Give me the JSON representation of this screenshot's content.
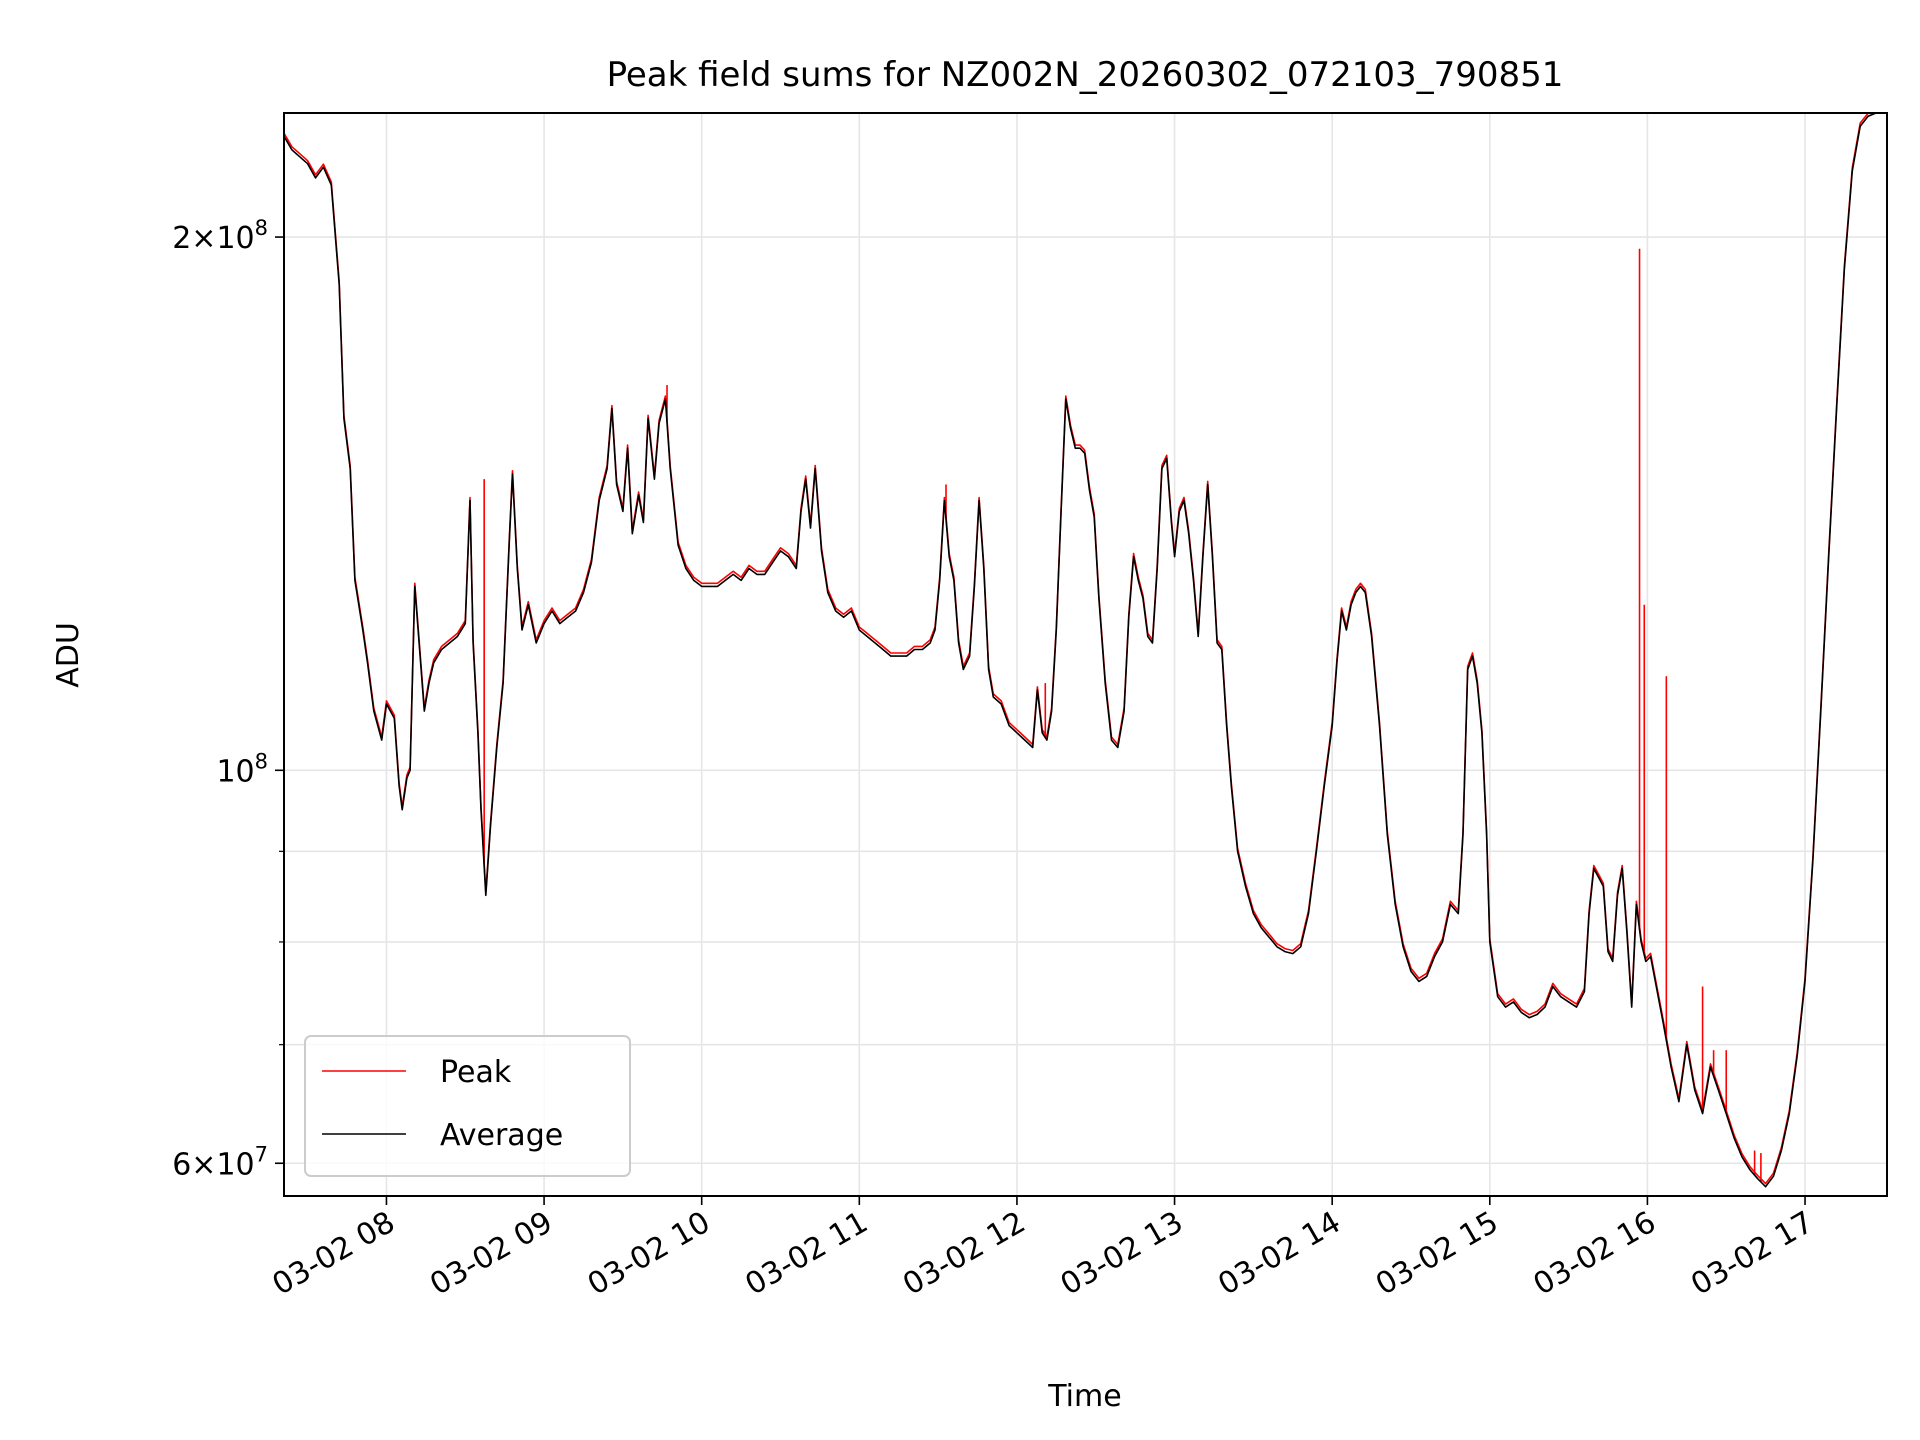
{
  "chart_data": {
    "type": "line",
    "title": "Peak field sums for NZ002N_20260302_072103_790851",
    "xlabel": "Time",
    "ylabel": "ADU",
    "yscale": "log",
    "grid": true,
    "legend_position": "lower-left",
    "xlim": [
      7.35,
      17.52
    ],
    "ylim": [
      57500000,
      235000000
    ],
    "x_unit": "hours on 03-02",
    "x_ticks": [
      {
        "value": 8,
        "label": "03-02 08"
      },
      {
        "value": 9,
        "label": "03-02 09"
      },
      {
        "value": 10,
        "label": "03-02 10"
      },
      {
        "value": 11,
        "label": "03-02 11"
      },
      {
        "value": 12,
        "label": "03-02 12"
      },
      {
        "value": 13,
        "label": "03-02 13"
      },
      {
        "value": 14,
        "label": "03-02 14"
      },
      {
        "value": 15,
        "label": "03-02 15"
      },
      {
        "value": 16,
        "label": "03-02 16"
      },
      {
        "value": 17,
        "label": "03-02 17"
      }
    ],
    "y_major_ticks": [
      {
        "value": 60000000,
        "base": "6",
        "exp": "7"
      },
      {
        "value": 100000000,
        "base": "",
        "exp": "8"
      },
      {
        "value": 200000000,
        "base": "2",
        "exp": "8"
      }
    ],
    "y_minor_ticks": [
      70000000,
      80000000,
      90000000
    ],
    "series": [
      {
        "name": "Average",
        "color": "#000000",
        "points": [
          [
            7.35,
            228000000
          ],
          [
            7.4,
            224000000
          ],
          [
            7.45,
            222000000
          ],
          [
            7.5,
            220000000
          ],
          [
            7.55,
            216000000
          ],
          [
            7.6,
            219000000
          ],
          [
            7.65,
            214000000
          ],
          [
            7.7,
            188000000
          ],
          [
            7.73,
            158000000
          ],
          [
            7.77,
            148000000
          ],
          [
            7.8,
            128000000
          ],
          [
            7.85,
            120000000
          ],
          [
            7.88,
            115000000
          ],
          [
            7.92,
            108000000
          ],
          [
            7.97,
            104000000
          ],
          [
            8.0,
            109000000
          ],
          [
            8.05,
            107000000
          ],
          [
            8.08,
            98000000
          ],
          [
            8.1,
            95000000
          ],
          [
            8.13,
            99000000
          ],
          [
            8.15,
            100000000
          ],
          [
            8.18,
            127000000
          ],
          [
            8.21,
            117000000
          ],
          [
            8.24,
            108000000
          ],
          [
            8.27,
            112000000
          ],
          [
            8.3,
            115000000
          ],
          [
            8.35,
            117000000
          ],
          [
            8.4,
            118000000
          ],
          [
            8.45,
            119000000
          ],
          [
            8.5,
            121000000
          ],
          [
            8.53,
            142000000
          ],
          [
            8.55,
            118000000
          ],
          [
            8.58,
            105000000
          ],
          [
            8.6,
            95000000
          ],
          [
            8.63,
            85000000
          ],
          [
            8.66,
            93000000
          ],
          [
            8.7,
            103000000
          ],
          [
            8.74,
            112000000
          ],
          [
            8.78,
            135000000
          ],
          [
            8.8,
            147000000
          ],
          [
            8.83,
            130000000
          ],
          [
            8.86,
            120000000
          ],
          [
            8.9,
            124000000
          ],
          [
            8.95,
            118000000
          ],
          [
            9.0,
            121000000
          ],
          [
            9.05,
            123000000
          ],
          [
            9.1,
            121000000
          ],
          [
            9.15,
            122000000
          ],
          [
            9.2,
            123000000
          ],
          [
            9.25,
            126000000
          ],
          [
            9.3,
            131000000
          ],
          [
            9.35,
            142000000
          ],
          [
            9.4,
            148000000
          ],
          [
            9.43,
            160000000
          ],
          [
            9.46,
            145000000
          ],
          [
            9.5,
            140000000
          ],
          [
            9.53,
            152000000
          ],
          [
            9.56,
            136000000
          ],
          [
            9.6,
            143000000
          ],
          [
            9.63,
            138000000
          ],
          [
            9.66,
            158000000
          ],
          [
            9.7,
            146000000
          ],
          [
            9.73,
            157000000
          ],
          [
            9.77,
            162000000
          ],
          [
            9.8,
            148000000
          ],
          [
            9.85,
            134000000
          ],
          [
            9.9,
            130000000
          ],
          [
            9.95,
            128000000
          ],
          [
            10.0,
            127000000
          ],
          [
            10.05,
            127000000
          ],
          [
            10.1,
            127000000
          ],
          [
            10.15,
            128000000
          ],
          [
            10.2,
            129000000
          ],
          [
            10.25,
            128000000
          ],
          [
            10.3,
            130000000
          ],
          [
            10.35,
            129000000
          ],
          [
            10.4,
            129000000
          ],
          [
            10.45,
            131000000
          ],
          [
            10.5,
            133000000
          ],
          [
            10.55,
            132000000
          ],
          [
            10.6,
            130000000
          ],
          [
            10.63,
            140000000
          ],
          [
            10.66,
            146000000
          ],
          [
            10.69,
            137000000
          ],
          [
            10.72,
            148000000
          ],
          [
            10.76,
            133000000
          ],
          [
            10.8,
            126000000
          ],
          [
            10.85,
            123000000
          ],
          [
            10.9,
            122000000
          ],
          [
            10.95,
            123000000
          ],
          [
            11.0,
            120000000
          ],
          [
            11.05,
            119000000
          ],
          [
            11.1,
            118000000
          ],
          [
            11.15,
            117000000
          ],
          [
            11.2,
            116000000
          ],
          [
            11.25,
            116000000
          ],
          [
            11.3,
            116000000
          ],
          [
            11.35,
            117000000
          ],
          [
            11.4,
            117000000
          ],
          [
            11.45,
            118000000
          ],
          [
            11.48,
            120000000
          ],
          [
            11.51,
            128000000
          ],
          [
            11.54,
            142000000
          ],
          [
            11.57,
            132000000
          ],
          [
            11.6,
            128000000
          ],
          [
            11.63,
            118000000
          ],
          [
            11.66,
            114000000
          ],
          [
            11.7,
            116000000
          ],
          [
            11.73,
            127000000
          ],
          [
            11.76,
            142000000
          ],
          [
            11.79,
            130000000
          ],
          [
            11.82,
            114000000
          ],
          [
            11.85,
            110000000
          ],
          [
            11.9,
            109000000
          ],
          [
            11.95,
            106000000
          ],
          [
            12.0,
            105000000
          ],
          [
            12.05,
            104000000
          ],
          [
            12.1,
            103000000
          ],
          [
            12.13,
            111000000
          ],
          [
            12.16,
            105000000
          ],
          [
            12.19,
            104000000
          ],
          [
            12.22,
            108000000
          ],
          [
            12.25,
            120000000
          ],
          [
            12.28,
            140000000
          ],
          [
            12.31,
            162000000
          ],
          [
            12.34,
            156000000
          ],
          [
            12.37,
            152000000
          ],
          [
            12.4,
            152000000
          ],
          [
            12.43,
            151000000
          ],
          [
            12.46,
            144000000
          ],
          [
            12.49,
            139000000
          ],
          [
            12.52,
            125000000
          ],
          [
            12.56,
            112000000
          ],
          [
            12.6,
            104000000
          ],
          [
            12.64,
            103000000
          ],
          [
            12.68,
            108000000
          ],
          [
            12.71,
            122000000
          ],
          [
            12.74,
            132000000
          ],
          [
            12.77,
            128000000
          ],
          [
            12.8,
            125000000
          ],
          [
            12.83,
            119000000
          ],
          [
            12.86,
            118000000
          ],
          [
            12.89,
            130000000
          ],
          [
            12.92,
            148000000
          ],
          [
            12.95,
            150000000
          ],
          [
            12.98,
            138000000
          ],
          [
            13.0,
            132000000
          ],
          [
            13.03,
            140000000
          ],
          [
            13.06,
            142000000
          ],
          [
            13.09,
            136000000
          ],
          [
            13.12,
            128000000
          ],
          [
            13.15,
            119000000
          ],
          [
            13.18,
            132000000
          ],
          [
            13.21,
            145000000
          ],
          [
            13.24,
            132000000
          ],
          [
            13.27,
            118000000
          ],
          [
            13.3,
            117000000
          ],
          [
            13.33,
            106000000
          ],
          [
            13.36,
            98000000
          ],
          [
            13.4,
            90000000
          ],
          [
            13.45,
            86000000
          ],
          [
            13.5,
            83000000
          ],
          [
            13.55,
            81500000
          ],
          [
            13.6,
            80500000
          ],
          [
            13.65,
            79500000
          ],
          [
            13.7,
            79000000
          ],
          [
            13.75,
            78800000
          ],
          [
            13.8,
            79500000
          ],
          [
            13.85,
            83000000
          ],
          [
            13.9,
            90000000
          ],
          [
            13.95,
            98000000
          ],
          [
            14.0,
            106000000
          ],
          [
            14.03,
            115000000
          ],
          [
            14.06,
            123000000
          ],
          [
            14.09,
            120000000
          ],
          [
            14.12,
            124000000
          ],
          [
            14.15,
            126000000
          ],
          [
            14.18,
            127000000
          ],
          [
            14.21,
            126000000
          ],
          [
            14.25,
            119000000
          ],
          [
            14.3,
            106000000
          ],
          [
            14.35,
            92000000
          ],
          [
            14.4,
            84000000
          ],
          [
            14.45,
            79500000
          ],
          [
            14.5,
            77000000
          ],
          [
            14.55,
            76000000
          ],
          [
            14.6,
            76500000
          ],
          [
            14.65,
            78500000
          ],
          [
            14.7,
            80000000
          ],
          [
            14.75,
            84000000
          ],
          [
            14.8,
            83000000
          ],
          [
            14.83,
            92000000
          ],
          [
            14.86,
            114000000
          ],
          [
            14.89,
            116000000
          ],
          [
            14.92,
            112000000
          ],
          [
            14.95,
            105000000
          ],
          [
            14.98,
            92000000
          ],
          [
            15.0,
            80000000
          ],
          [
            15.05,
            74500000
          ],
          [
            15.1,
            73500000
          ],
          [
            15.15,
            74000000
          ],
          [
            15.2,
            73000000
          ],
          [
            15.25,
            72500000
          ],
          [
            15.3,
            72800000
          ],
          [
            15.35,
            73500000
          ],
          [
            15.4,
            75500000
          ],
          [
            15.45,
            74500000
          ],
          [
            15.5,
            74000000
          ],
          [
            15.55,
            73500000
          ],
          [
            15.6,
            75000000
          ],
          [
            15.63,
            83000000
          ],
          [
            15.66,
            88000000
          ],
          [
            15.69,
            87000000
          ],
          [
            15.72,
            86000000
          ],
          [
            15.75,
            79000000
          ],
          [
            15.78,
            78000000
          ],
          [
            15.81,
            85000000
          ],
          [
            15.84,
            88000000
          ],
          [
            15.87,
            81000000
          ],
          [
            15.9,
            73500000
          ],
          [
            15.93,
            84000000
          ],
          [
            15.96,
            80000000
          ],
          [
            15.99,
            78000000
          ],
          [
            16.02,
            78500000
          ],
          [
            16.05,
            76000000
          ],
          [
            16.1,
            72000000
          ],
          [
            16.15,
            68000000
          ],
          [
            16.2,
            65000000
          ],
          [
            16.25,
            70000000
          ],
          [
            16.3,
            66000000
          ],
          [
            16.35,
            64000000
          ],
          [
            16.4,
            68000000
          ],
          [
            16.45,
            66000000
          ],
          [
            16.5,
            64000000
          ],
          [
            16.55,
            62000000
          ],
          [
            16.6,
            60500000
          ],
          [
            16.65,
            59500000
          ],
          [
            16.7,
            58800000
          ],
          [
            16.75,
            58200000
          ],
          [
            16.8,
            59000000
          ],
          [
            16.85,
            61000000
          ],
          [
            16.9,
            64000000
          ],
          [
            16.95,
            69000000
          ],
          [
            17.0,
            76000000
          ],
          [
            17.05,
            89000000
          ],
          [
            17.1,
            108000000
          ],
          [
            17.15,
            132000000
          ],
          [
            17.2,
            160000000
          ],
          [
            17.25,
            192000000
          ],
          [
            17.3,
            218000000
          ],
          [
            17.35,
            231000000
          ],
          [
            17.4,
            234000000
          ],
          [
            17.45,
            235000000
          ],
          [
            17.52,
            235000000
          ]
        ]
      },
      {
        "name": "Peak",
        "color": "#ff0000",
        "spikes": [
          [
            15.95,
            197000000
          ],
          [
            15.98,
            124000000
          ],
          [
            16.12,
            113000000
          ],
          [
            16.35,
            75500000
          ],
          [
            16.42,
            69500000
          ],
          [
            16.5,
            69500000
          ],
          [
            8.62,
            146000000
          ],
          [
            9.78,
            165000000
          ],
          [
            11.55,
            145000000
          ],
          [
            12.18,
            112000000
          ],
          [
            13.83,
            82000000
          ],
          [
            16.68,
            61000000
          ],
          [
            16.72,
            60800000
          ]
        ]
      }
    ]
  }
}
